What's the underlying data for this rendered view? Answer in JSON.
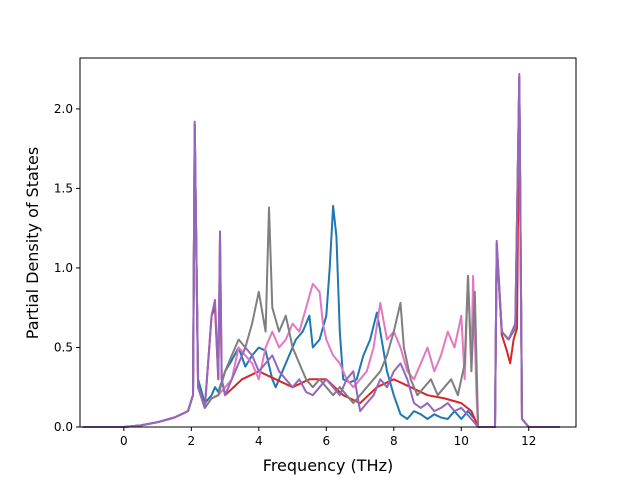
{
  "chart_data": {
    "type": "line",
    "xlabel": "Frequency (THz)",
    "ylabel": "Partial Density of States",
    "xlim": [
      -1.3,
      13.4
    ],
    "ylim": [
      0,
      2.32
    ],
    "xticks": [
      0,
      2,
      4,
      6,
      8,
      10,
      12
    ],
    "yticks": [
      0.0,
      0.5,
      1.0,
      1.5,
      2.0
    ],
    "xtick_labels": [
      "0",
      "2",
      "4",
      "6",
      "8",
      "10",
      "12"
    ],
    "ytick_labels": [
      "0.0",
      "0.5",
      "1.0",
      "1.5",
      "2.0"
    ],
    "grid": false,
    "legend": "none",
    "series": [
      {
        "color": "#1f77b4",
        "points": [
          [
            -1.2,
            0
          ],
          [
            0,
            0
          ],
          [
            0.5,
            0.01
          ],
          [
            1.0,
            0.03
          ],
          [
            1.5,
            0.06
          ],
          [
            1.9,
            0.1
          ],
          [
            2.05,
            0.2
          ],
          [
            2.1,
            1.9
          ],
          [
            2.2,
            0.3
          ],
          [
            2.4,
            0.15
          ],
          [
            2.6,
            0.2
          ],
          [
            2.7,
            0.25
          ],
          [
            2.8,
            0.22
          ],
          [
            3.0,
            0.35
          ],
          [
            3.2,
            0.42
          ],
          [
            3.4,
            0.5
          ],
          [
            3.6,
            0.38
          ],
          [
            3.8,
            0.45
          ],
          [
            4.0,
            0.5
          ],
          [
            4.2,
            0.48
          ],
          [
            4.4,
            0.3
          ],
          [
            4.5,
            0.25
          ],
          [
            4.7,
            0.35
          ],
          [
            4.9,
            0.45
          ],
          [
            5.1,
            0.55
          ],
          [
            5.3,
            0.6
          ],
          [
            5.5,
            0.7
          ],
          [
            5.6,
            0.5
          ],
          [
            5.8,
            0.55
          ],
          [
            6.0,
            0.7
          ],
          [
            6.1,
            1.0
          ],
          [
            6.2,
            1.39
          ],
          [
            6.3,
            1.2
          ],
          [
            6.4,
            0.6
          ],
          [
            6.5,
            0.3
          ],
          [
            6.7,
            0.28
          ],
          [
            6.9,
            0.3
          ],
          [
            7.1,
            0.45
          ],
          [
            7.3,
            0.55
          ],
          [
            7.5,
            0.72
          ],
          [
            7.6,
            0.6
          ],
          [
            7.8,
            0.35
          ],
          [
            8.0,
            0.2
          ],
          [
            8.2,
            0.08
          ],
          [
            8.4,
            0.05
          ],
          [
            8.6,
            0.1
          ],
          [
            8.8,
            0.08
          ],
          [
            9.0,
            0.05
          ],
          [
            9.2,
            0.08
          ],
          [
            9.4,
            0.06
          ],
          [
            9.6,
            0.05
          ],
          [
            9.8,
            0.1
          ],
          [
            10.0,
            0.05
          ],
          [
            10.2,
            0.1
          ],
          [
            10.4,
            0.05
          ],
          [
            10.5,
            0
          ],
          [
            11.0,
            0
          ],
          [
            11.05,
            1.15
          ],
          [
            11.2,
            0.6
          ],
          [
            11.4,
            0.55
          ],
          [
            11.6,
            0.62
          ],
          [
            11.72,
            2.2
          ],
          [
            11.8,
            0.05
          ],
          [
            12.0,
            0
          ],
          [
            12.9,
            0
          ]
        ]
      },
      {
        "color": "#d62728",
        "points": [
          [
            -1.2,
            0
          ],
          [
            0,
            0
          ],
          [
            0.5,
            0.01
          ],
          [
            1.0,
            0.03
          ],
          [
            1.5,
            0.06
          ],
          [
            1.9,
            0.1
          ],
          [
            2.05,
            0.2
          ],
          [
            2.1,
            1.9
          ],
          [
            2.2,
            0.25
          ],
          [
            2.4,
            0.12
          ],
          [
            2.6,
            0.7
          ],
          [
            2.7,
            0.75
          ],
          [
            2.8,
            0.3
          ],
          [
            2.85,
            1.2
          ],
          [
            2.9,
            0.3
          ],
          [
            3.0,
            0.2
          ],
          [
            3.5,
            0.3
          ],
          [
            4.0,
            0.35
          ],
          [
            4.5,
            0.3
          ],
          [
            5.0,
            0.25
          ],
          [
            5.5,
            0.3
          ],
          [
            6.0,
            0.3
          ],
          [
            6.5,
            0.2
          ],
          [
            7.0,
            0.15
          ],
          [
            7.5,
            0.25
          ],
          [
            8.0,
            0.3
          ],
          [
            8.5,
            0.25
          ],
          [
            9.0,
            0.2
          ],
          [
            9.5,
            0.18
          ],
          [
            10.0,
            0.15
          ],
          [
            10.3,
            0.1
          ],
          [
            10.5,
            0
          ],
          [
            11.0,
            0
          ],
          [
            11.05,
            1.15
          ],
          [
            11.2,
            0.58
          ],
          [
            11.35,
            0.48
          ],
          [
            11.45,
            0.4
          ],
          [
            11.55,
            0.55
          ],
          [
            11.65,
            0.62
          ],
          [
            11.72,
            2.2
          ],
          [
            11.8,
            0.05
          ],
          [
            12.0,
            0
          ],
          [
            12.9,
            0
          ]
        ]
      },
      {
        "color": "#e377c2",
        "points": [
          [
            -1.2,
            0
          ],
          [
            0,
            0
          ],
          [
            0.5,
            0.01
          ],
          [
            1.0,
            0.03
          ],
          [
            1.5,
            0.06
          ],
          [
            1.9,
            0.1
          ],
          [
            2.05,
            0.2
          ],
          [
            2.1,
            1.9
          ],
          [
            2.2,
            0.25
          ],
          [
            2.4,
            0.12
          ],
          [
            2.6,
            0.18
          ],
          [
            2.8,
            0.2
          ],
          [
            3.0,
            0.25
          ],
          [
            3.2,
            0.3
          ],
          [
            3.4,
            0.5
          ],
          [
            3.6,
            0.45
          ],
          [
            3.8,
            0.4
          ],
          [
            4.0,
            0.3
          ],
          [
            4.2,
            0.5
          ],
          [
            4.4,
            0.6
          ],
          [
            4.6,
            0.5
          ],
          [
            4.8,
            0.55
          ],
          [
            5.0,
            0.65
          ],
          [
            5.2,
            0.6
          ],
          [
            5.4,
            0.75
          ],
          [
            5.6,
            0.9
          ],
          [
            5.8,
            0.85
          ],
          [
            5.9,
            0.65
          ],
          [
            6.0,
            0.55
          ],
          [
            6.2,
            0.45
          ],
          [
            6.4,
            0.4
          ],
          [
            6.6,
            0.3
          ],
          [
            6.8,
            0.25
          ],
          [
            7.0,
            0.3
          ],
          [
            7.2,
            0.35
          ],
          [
            7.4,
            0.5
          ],
          [
            7.6,
            0.78
          ],
          [
            7.8,
            0.55
          ],
          [
            8.0,
            0.6
          ],
          [
            8.2,
            0.5
          ],
          [
            8.4,
            0.35
          ],
          [
            8.6,
            0.3
          ],
          [
            8.8,
            0.4
          ],
          [
            9.0,
            0.5
          ],
          [
            9.2,
            0.35
          ],
          [
            9.4,
            0.45
          ],
          [
            9.6,
            0.6
          ],
          [
            9.8,
            0.5
          ],
          [
            10.0,
            0.7
          ],
          [
            10.1,
            0.3
          ],
          [
            10.2,
            0.95
          ],
          [
            10.3,
            0.4
          ],
          [
            10.35,
            0.95
          ],
          [
            10.45,
            0.2
          ],
          [
            10.5,
            0
          ],
          [
            11.0,
            0
          ],
          [
            11.05,
            1.15
          ],
          [
            11.2,
            0.6
          ],
          [
            11.4,
            0.55
          ],
          [
            11.6,
            0.62
          ],
          [
            11.72,
            2.2
          ],
          [
            11.8,
            0.05
          ],
          [
            12.0,
            0
          ],
          [
            12.9,
            0
          ]
        ]
      },
      {
        "color": "#7f7f7f",
        "points": [
          [
            -1.2,
            0
          ],
          [
            0,
            0
          ],
          [
            0.5,
            0.01
          ],
          [
            1.0,
            0.03
          ],
          [
            1.5,
            0.06
          ],
          [
            1.9,
            0.1
          ],
          [
            2.05,
            0.2
          ],
          [
            2.1,
            1.9
          ],
          [
            2.2,
            0.25
          ],
          [
            2.4,
            0.12
          ],
          [
            2.6,
            0.18
          ],
          [
            2.8,
            0.2
          ],
          [
            3.0,
            0.35
          ],
          [
            3.2,
            0.45
          ],
          [
            3.4,
            0.55
          ],
          [
            3.6,
            0.5
          ],
          [
            3.8,
            0.65
          ],
          [
            4.0,
            0.85
          ],
          [
            4.2,
            0.6
          ],
          [
            4.3,
            1.38
          ],
          [
            4.4,
            0.75
          ],
          [
            4.6,
            0.6
          ],
          [
            4.8,
            0.7
          ],
          [
            5.0,
            0.5
          ],
          [
            5.2,
            0.4
          ],
          [
            5.4,
            0.3
          ],
          [
            5.6,
            0.25
          ],
          [
            5.8,
            0.3
          ],
          [
            6.0,
            0.25
          ],
          [
            6.2,
            0.2
          ],
          [
            6.4,
            0.25
          ],
          [
            6.6,
            0.2
          ],
          [
            6.8,
            0.15
          ],
          [
            7.0,
            0.2
          ],
          [
            7.2,
            0.25
          ],
          [
            7.4,
            0.3
          ],
          [
            7.6,
            0.35
          ],
          [
            7.8,
            0.45
          ],
          [
            8.0,
            0.6
          ],
          [
            8.2,
            0.78
          ],
          [
            8.3,
            0.5
          ],
          [
            8.5,
            0.3
          ],
          [
            8.7,
            0.2
          ],
          [
            8.9,
            0.25
          ],
          [
            9.1,
            0.3
          ],
          [
            9.3,
            0.2
          ],
          [
            9.5,
            0.25
          ],
          [
            9.7,
            0.3
          ],
          [
            9.9,
            0.2
          ],
          [
            10.1,
            0.4
          ],
          [
            10.2,
            0.95
          ],
          [
            10.3,
            0.35
          ],
          [
            10.4,
            0.85
          ],
          [
            10.5,
            0
          ],
          [
            11.0,
            0
          ],
          [
            11.05,
            1.15
          ],
          [
            11.2,
            0.6
          ],
          [
            11.4,
            0.55
          ],
          [
            11.6,
            0.62
          ],
          [
            11.72,
            2.2
          ],
          [
            11.8,
            0.05
          ],
          [
            12.0,
            0
          ],
          [
            12.9,
            0
          ]
        ]
      },
      {
        "color": "#9467bd",
        "points": [
          [
            -1.2,
            0
          ],
          [
            0,
            0
          ],
          [
            0.5,
            0.01
          ],
          [
            1.0,
            0.03
          ],
          [
            1.5,
            0.06
          ],
          [
            1.9,
            0.1
          ],
          [
            2.05,
            0.2
          ],
          [
            2.1,
            1.92
          ],
          [
            2.2,
            0.25
          ],
          [
            2.4,
            0.12
          ],
          [
            2.6,
            0.7
          ],
          [
            2.7,
            0.8
          ],
          [
            2.8,
            0.3
          ],
          [
            2.85,
            1.23
          ],
          [
            2.9,
            0.3
          ],
          [
            3.0,
            0.2
          ],
          [
            3.2,
            0.3
          ],
          [
            3.4,
            0.4
          ],
          [
            3.6,
            0.5
          ],
          [
            3.8,
            0.45
          ],
          [
            4.0,
            0.35
          ],
          [
            4.2,
            0.4
          ],
          [
            4.4,
            0.45
          ],
          [
            4.6,
            0.35
          ],
          [
            4.8,
            0.3
          ],
          [
            5.0,
            0.25
          ],
          [
            5.2,
            0.3
          ],
          [
            5.4,
            0.22
          ],
          [
            5.6,
            0.2
          ],
          [
            5.8,
            0.25
          ],
          [
            6.0,
            0.3
          ],
          [
            6.2,
            0.25
          ],
          [
            6.4,
            0.2
          ],
          [
            6.6,
            0.3
          ],
          [
            6.8,
            0.35
          ],
          [
            7.0,
            0.1
          ],
          [
            7.2,
            0.15
          ],
          [
            7.4,
            0.2
          ],
          [
            7.6,
            0.3
          ],
          [
            7.8,
            0.25
          ],
          [
            8.0,
            0.35
          ],
          [
            8.2,
            0.4
          ],
          [
            8.4,
            0.3
          ],
          [
            8.6,
            0.15
          ],
          [
            8.8,
            0.12
          ],
          [
            9.0,
            0.15
          ],
          [
            9.2,
            0.1
          ],
          [
            9.4,
            0.12
          ],
          [
            9.6,
            0.15
          ],
          [
            9.8,
            0.1
          ],
          [
            10.0,
            0.12
          ],
          [
            10.3,
            0.05
          ],
          [
            10.5,
            0
          ],
          [
            11.0,
            0
          ],
          [
            11.05,
            1.17
          ],
          [
            11.2,
            0.6
          ],
          [
            11.4,
            0.55
          ],
          [
            11.6,
            0.65
          ],
          [
            11.72,
            2.22
          ],
          [
            11.8,
            0.05
          ],
          [
            12.0,
            0
          ],
          [
            12.9,
            0
          ]
        ]
      }
    ]
  }
}
